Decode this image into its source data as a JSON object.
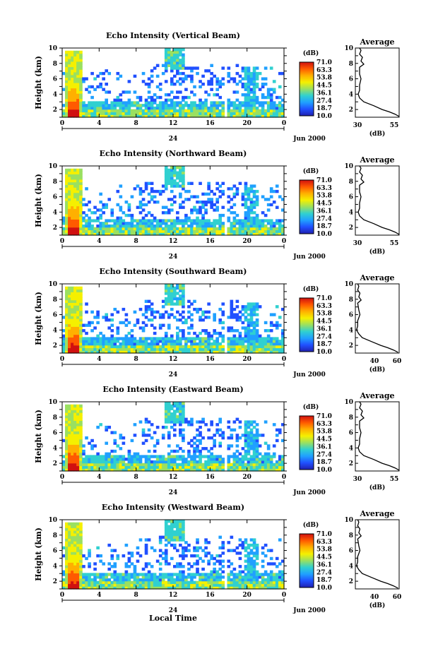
{
  "figure": {
    "bottom_xlabel": "Local Time",
    "x_tick_labels": [
      "0",
      "4",
      "8",
      "12",
      "16",
      "20",
      "0"
    ],
    "date_label": "24",
    "month_label": "Jun 2000",
    "y_label": "Height (km)",
    "y_tick_labels": [
      "2",
      "4",
      "6",
      "8",
      "10"
    ],
    "colorbar_unit": "(dB)",
    "colorbar_ticks": [
      "71.0",
      "63.3",
      "53.8",
      "44.5",
      "36.1",
      "27.4",
      "18.7",
      "10.0"
    ],
    "colorbar_colors": [
      "#d01010",
      "#ff5a00",
      "#ffb000",
      "#f5f000",
      "#9ae060",
      "#30d0d0",
      "#20a0ff",
      "#2050ff",
      "#2020b0"
    ],
    "avg_title": "Average",
    "avg_xlabel": "(dB)"
  },
  "chart_data": [
    {
      "type": "heatmap",
      "title": "Echo Intensity (Vertical Beam)",
      "xlabel": "",
      "ylabel": "Height (km)",
      "x_range": [
        0,
        24
      ],
      "y_range": [
        1,
        10
      ],
      "color_range": [
        10.0,
        71.0
      ],
      "color_unit": "(dB)",
      "profile": {
        "title": "Average",
        "xlabel": "(dB)",
        "x_ticks": [
          "30",
          "55"
        ],
        "xlim": [
          27,
          58
        ],
        "points": [
          [
            30,
            10
          ],
          [
            31,
            9.7
          ],
          [
            30,
            9.2
          ],
          [
            32,
            8.8
          ],
          [
            31,
            8.3
          ],
          [
            33,
            7.9
          ],
          [
            30,
            7.5
          ],
          [
            30,
            6.6
          ],
          [
            31,
            6
          ],
          [
            30,
            5.2
          ],
          [
            30,
            4.5
          ],
          [
            29,
            4
          ],
          [
            30,
            3.5
          ],
          [
            33,
            3
          ],
          [
            40,
            2.5
          ],
          [
            46,
            2
          ],
          [
            51,
            1.7
          ],
          [
            55,
            1.4
          ],
          [
            58,
            1.1
          ]
        ]
      }
    },
    {
      "type": "heatmap",
      "title": "Echo Intensity (Northward Beam)",
      "xlabel": "",
      "ylabel": "Height (km)",
      "x_range": [
        0,
        24
      ],
      "y_range": [
        1,
        10
      ],
      "color_range": [
        10.0,
        71.0
      ],
      "color_unit": "(dB)",
      "profile": {
        "title": "Average",
        "xlabel": "(dB)",
        "x_ticks": [
          "30",
          "55"
        ],
        "xlim": [
          27,
          58
        ],
        "points": [
          [
            30,
            10
          ],
          [
            31,
            9.7
          ],
          [
            30,
            9.2
          ],
          [
            32,
            8.8
          ],
          [
            31,
            8.3
          ],
          [
            33,
            7.9
          ],
          [
            30,
            7.5
          ],
          [
            30,
            6.6
          ],
          [
            31,
            6
          ],
          [
            30,
            5.2
          ],
          [
            30,
            4.5
          ],
          [
            29,
            4
          ],
          [
            30,
            3.5
          ],
          [
            33,
            3
          ],
          [
            40,
            2.5
          ],
          [
            46,
            2
          ],
          [
            51,
            1.7
          ],
          [
            55,
            1.4
          ],
          [
            58,
            1.1
          ]
        ]
      }
    },
    {
      "type": "heatmap",
      "title": "Echo Intensity (Southward Beam)",
      "xlabel": "",
      "ylabel": "Height (km)",
      "x_range": [
        0,
        24
      ],
      "y_range": [
        1,
        10
      ],
      "color_range": [
        10.0,
        71.0
      ],
      "color_unit": "(dB)",
      "profile": {
        "title": "Average",
        "xlabel": "(dB)",
        "x_ticks": [
          "40",
          "60"
        ],
        "xlim": [
          24,
          62
        ],
        "points": [
          [
            26,
            10
          ],
          [
            27,
            9.7
          ],
          [
            26,
            9.2
          ],
          [
            28,
            8.8
          ],
          [
            27,
            8.3
          ],
          [
            29,
            7.9
          ],
          [
            26,
            7.5
          ],
          [
            27,
            6.6
          ],
          [
            28,
            6
          ],
          [
            26,
            5.2
          ],
          [
            26,
            4.5
          ],
          [
            25,
            4
          ],
          [
            27,
            3.5
          ],
          [
            30,
            3
          ],
          [
            38,
            2.5
          ],
          [
            46,
            2
          ],
          [
            52,
            1.7
          ],
          [
            57,
            1.4
          ],
          [
            61,
            1.1
          ]
        ]
      }
    },
    {
      "type": "heatmap",
      "title": "Echo Intensity (Eastward Beam)",
      "xlabel": "",
      "ylabel": "Height (km)",
      "x_range": [
        0,
        24
      ],
      "y_range": [
        1,
        10
      ],
      "color_range": [
        10.0,
        71.0
      ],
      "color_unit": "(dB)",
      "profile": {
        "title": "Average",
        "xlabel": "(dB)",
        "x_ticks": [
          "30",
          "55"
        ],
        "xlim": [
          27,
          58
        ],
        "points": [
          [
            30,
            10
          ],
          [
            31,
            9.7
          ],
          [
            30,
            9.2
          ],
          [
            32,
            8.8
          ],
          [
            31,
            8.3
          ],
          [
            33,
            7.9
          ],
          [
            30,
            7.5
          ],
          [
            30,
            6.6
          ],
          [
            31,
            6
          ],
          [
            30,
            5.2
          ],
          [
            30,
            4.5
          ],
          [
            29,
            4
          ],
          [
            30,
            3.5
          ],
          [
            33,
            3
          ],
          [
            40,
            2.5
          ],
          [
            46,
            2
          ],
          [
            51,
            1.7
          ],
          [
            55,
            1.4
          ],
          [
            58,
            1.1
          ]
        ]
      }
    },
    {
      "type": "heatmap",
      "title": "Echo Intensity (Westward Beam)",
      "xlabel": "Local Time",
      "ylabel": "Height (km)",
      "x_range": [
        0,
        24
      ],
      "y_range": [
        1,
        10
      ],
      "color_range": [
        10.0,
        71.0
      ],
      "color_unit": "(dB)",
      "profile": {
        "title": "Average",
        "xlabel": "(dB)",
        "x_ticks": [
          "40",
          "60"
        ],
        "xlim": [
          24,
          62
        ],
        "points": [
          [
            26,
            10
          ],
          [
            27,
            9.7
          ],
          [
            26,
            9.2
          ],
          [
            28,
            8.8
          ],
          [
            27,
            8.3
          ],
          [
            29,
            7.9
          ],
          [
            26,
            7.5
          ],
          [
            27,
            6.6
          ],
          [
            28,
            6
          ],
          [
            26,
            5.2
          ],
          [
            26,
            4.5
          ],
          [
            25,
            4
          ],
          [
            27,
            3.5
          ],
          [
            30,
            3
          ],
          [
            38,
            2.5
          ],
          [
            46,
            2
          ],
          [
            52,
            1.7
          ],
          [
            57,
            1.4
          ],
          [
            61,
            1.1
          ]
        ]
      }
    }
  ]
}
